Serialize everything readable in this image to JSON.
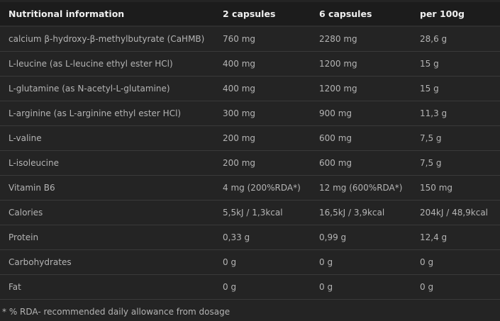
{
  "table": {
    "headers": [
      "Nutritional information",
      "2 capsules",
      "6 capsules",
      "per 100g"
    ],
    "rows": [
      [
        "calcium β-hydroxy-β-methylbutyrate (CaHMB)",
        "760 mg",
        "2280 mg",
        "28,6 g"
      ],
      [
        "L-leucine (as L-leucine ethyl ester HCl)",
        "400 mg",
        "1200 mg",
        "15 g"
      ],
      [
        "L-glutamine (as N-acetyl-L-glutamine)",
        "400 mg",
        "1200 mg",
        "15 g"
      ],
      [
        "L-arginine (as L-arginine ethyl ester HCl)",
        "300 mg",
        "900 mg",
        "11,3 g"
      ],
      [
        "L-valine",
        "200 mg",
        "600 mg",
        "7,5 g"
      ],
      [
        "L-isoleucine",
        "200 mg",
        "600 mg",
        "7,5 g"
      ],
      [
        "Vitamin B6",
        "4 mg (200%RDA*)",
        "12 mg (600%RDA*)",
        "150 mg"
      ],
      [
        "Calories",
        "5,5kJ / 1,3kcal",
        "16,5kJ / 3,9kcal",
        "204kJ / 48,9kcal"
      ],
      [
        "Protein",
        "0,33 g",
        "0,99 g",
        "12,4 g"
      ],
      [
        "Carbohydrates",
        "0 g",
        "0 g",
        "0 g"
      ],
      [
        "Fat",
        "0 g",
        "0 g",
        "0 g"
      ]
    ]
  },
  "footnote": "* % RDA- recommended daily allowance from dosage"
}
